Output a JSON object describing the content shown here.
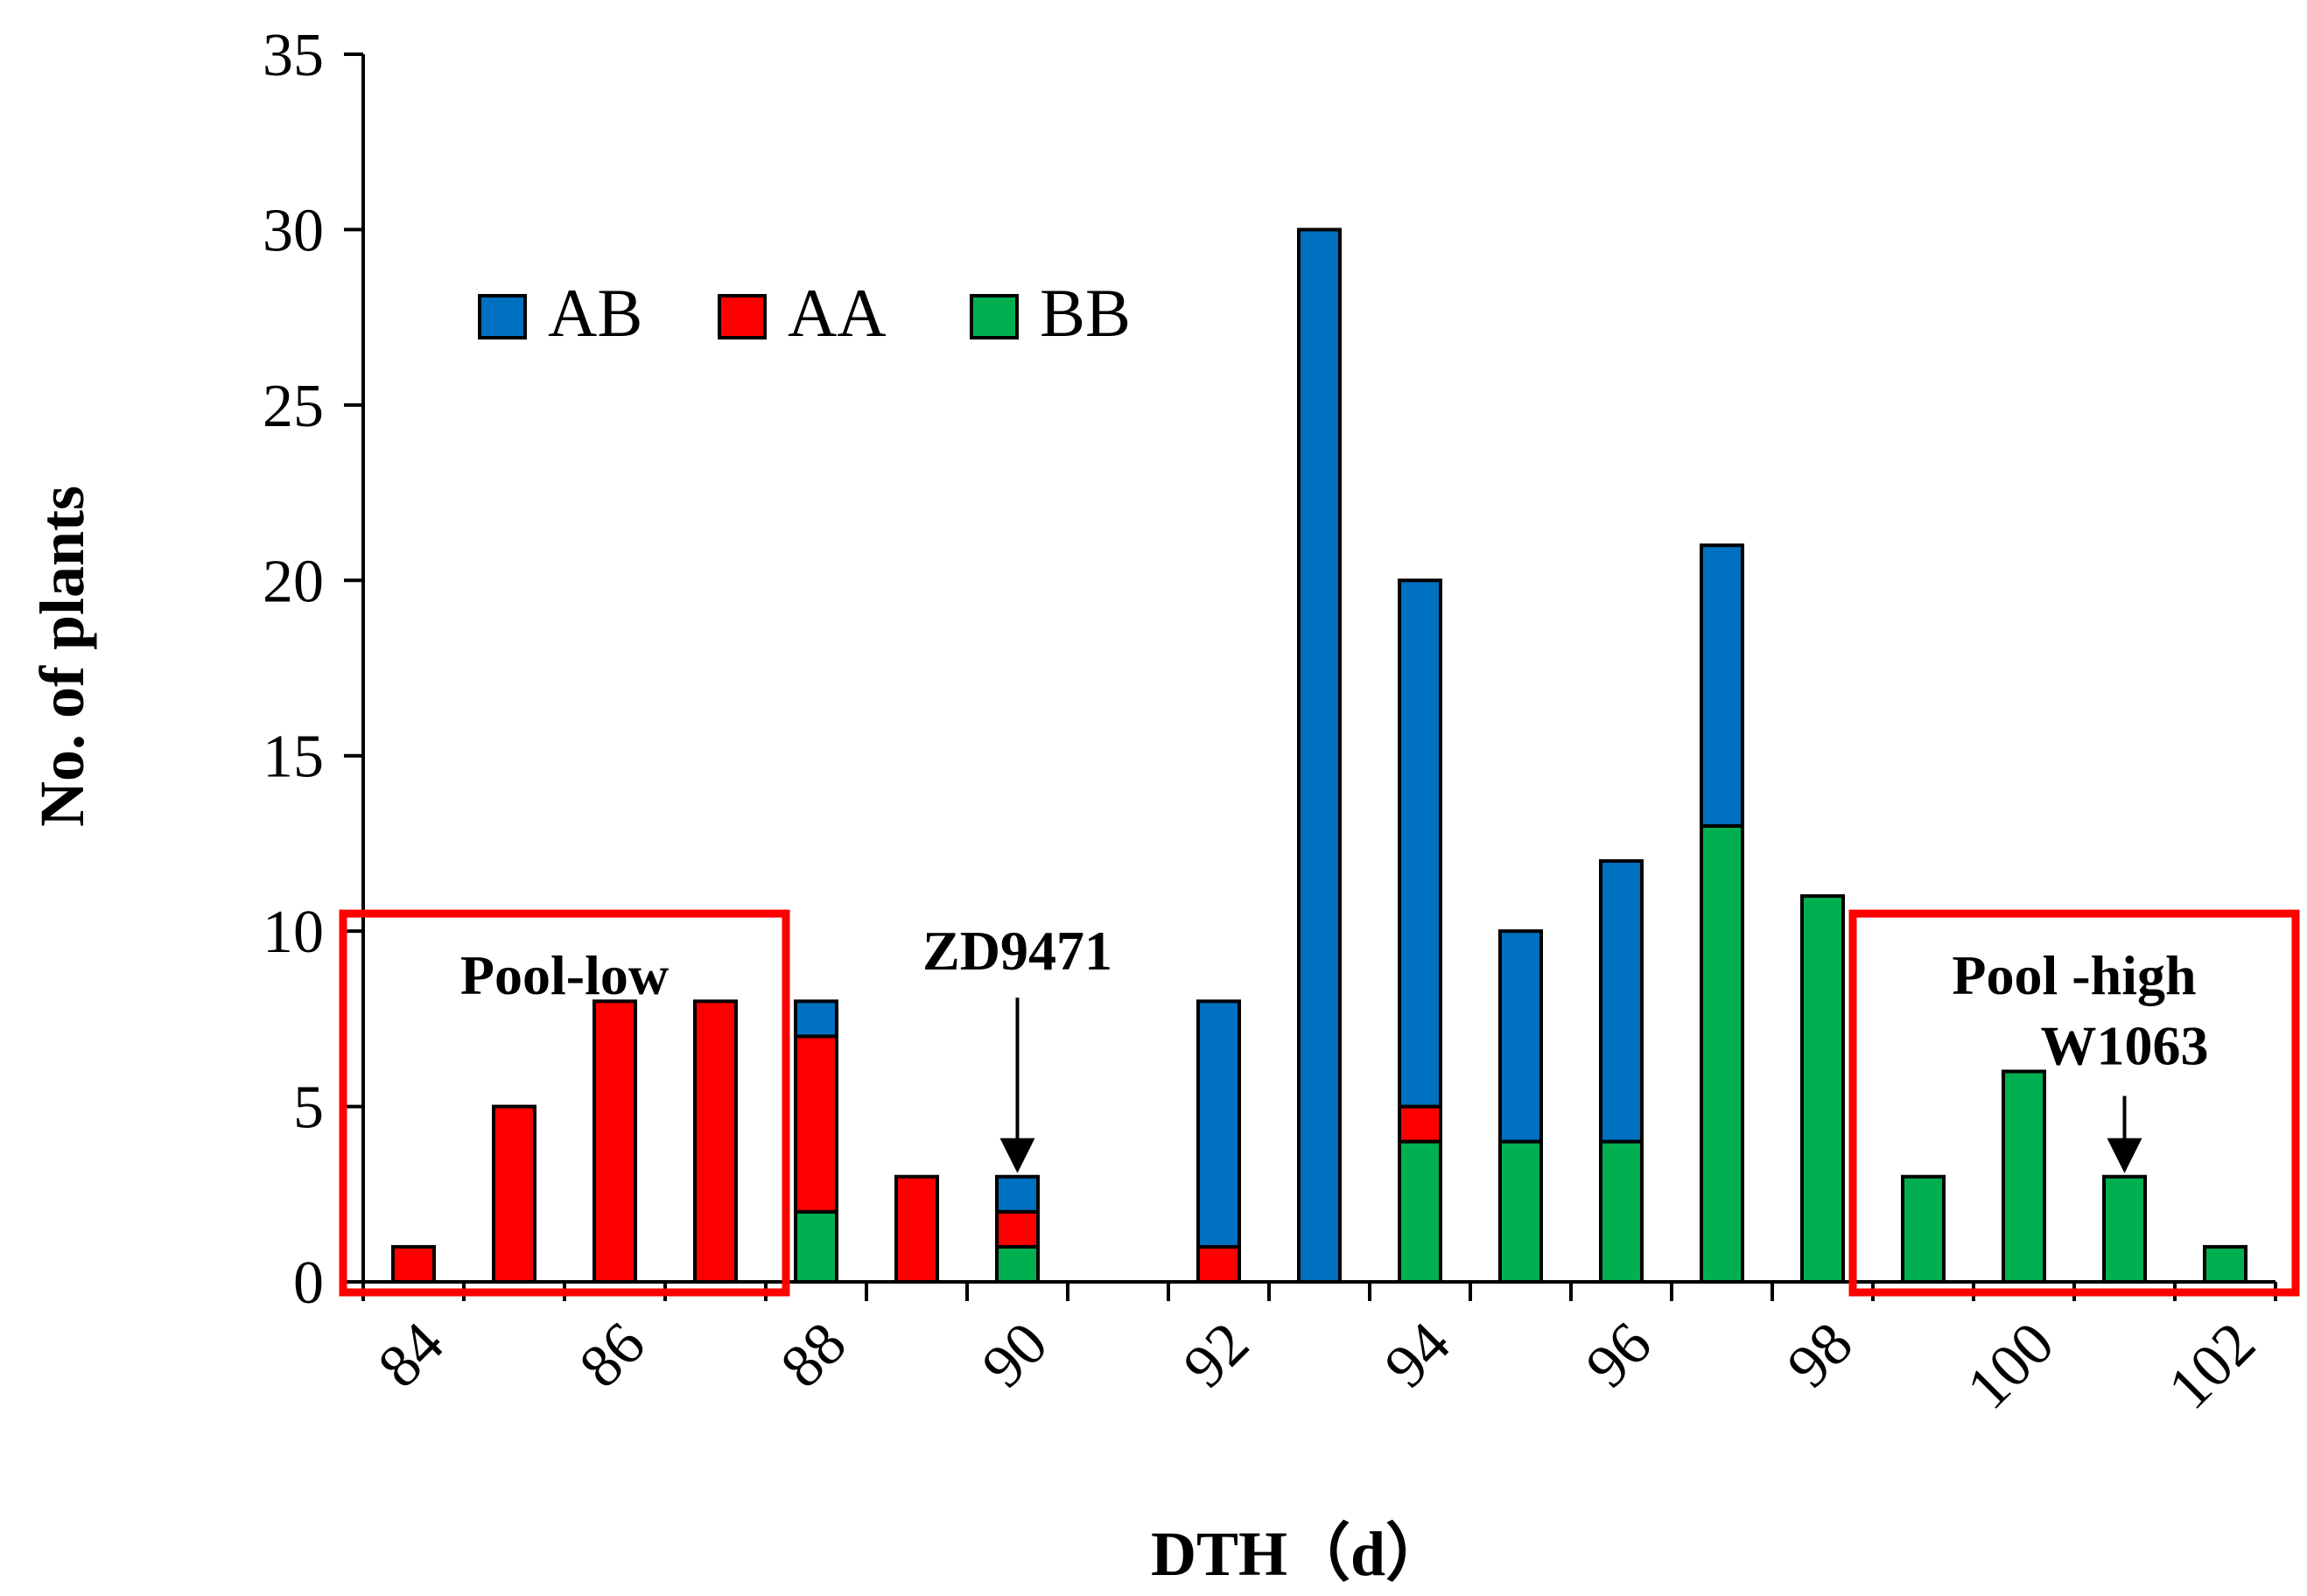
{
  "chart_data": {
    "type": "bar",
    "stacked": true,
    "title": "",
    "xlabel": "DTH（d）",
    "ylabel": "No. of plants",
    "ylim": [
      0,
      35
    ],
    "yticks": [
      0,
      5,
      10,
      15,
      20,
      25,
      30,
      35
    ],
    "categories": [
      84,
      85,
      86,
      87,
      88,
      89,
      90,
      91,
      92,
      93,
      94,
      95,
      96,
      97,
      98,
      99,
      100,
      101,
      102
    ],
    "xtick_labels": [
      "84",
      "86",
      "88",
      "90",
      "92",
      "94",
      "96",
      "98",
      "100",
      "102"
    ],
    "series": [
      {
        "name": "BB",
        "color": "#00b050",
        "values": [
          0,
          0,
          0,
          0,
          2,
          0,
          1,
          0,
          0,
          0,
          4,
          4,
          4,
          13,
          11,
          3,
          6,
          3,
          1
        ]
      },
      {
        "name": "AA",
        "color": "#ff0000",
        "values": [
          1,
          5,
          8,
          8,
          5,
          3,
          1,
          0,
          1,
          0,
          1,
          0,
          0,
          0,
          0,
          0,
          0,
          0,
          0
        ]
      },
      {
        "name": "AB",
        "color": "#0070c0",
        "values": [
          0,
          0,
          0,
          0,
          1,
          0,
          1,
          0,
          7,
          30,
          15,
          6,
          8,
          8,
          0,
          0,
          0,
          0,
          0
        ]
      }
    ],
    "legend": {
      "position": "top-left",
      "order": [
        "AB",
        "AA",
        "BB"
      ]
    },
    "annotations": [
      {
        "type": "box",
        "label": "Pool-low",
        "range": [
          84,
          87
        ],
        "color": "#ff0000"
      },
      {
        "type": "box",
        "label": "Pool -high",
        "range": [
          99,
          102
        ],
        "color": "#ff0000"
      },
      {
        "type": "arrow",
        "label": "ZD9471",
        "x": 90
      },
      {
        "type": "arrow",
        "label": "W1063",
        "x": 101
      }
    ]
  }
}
